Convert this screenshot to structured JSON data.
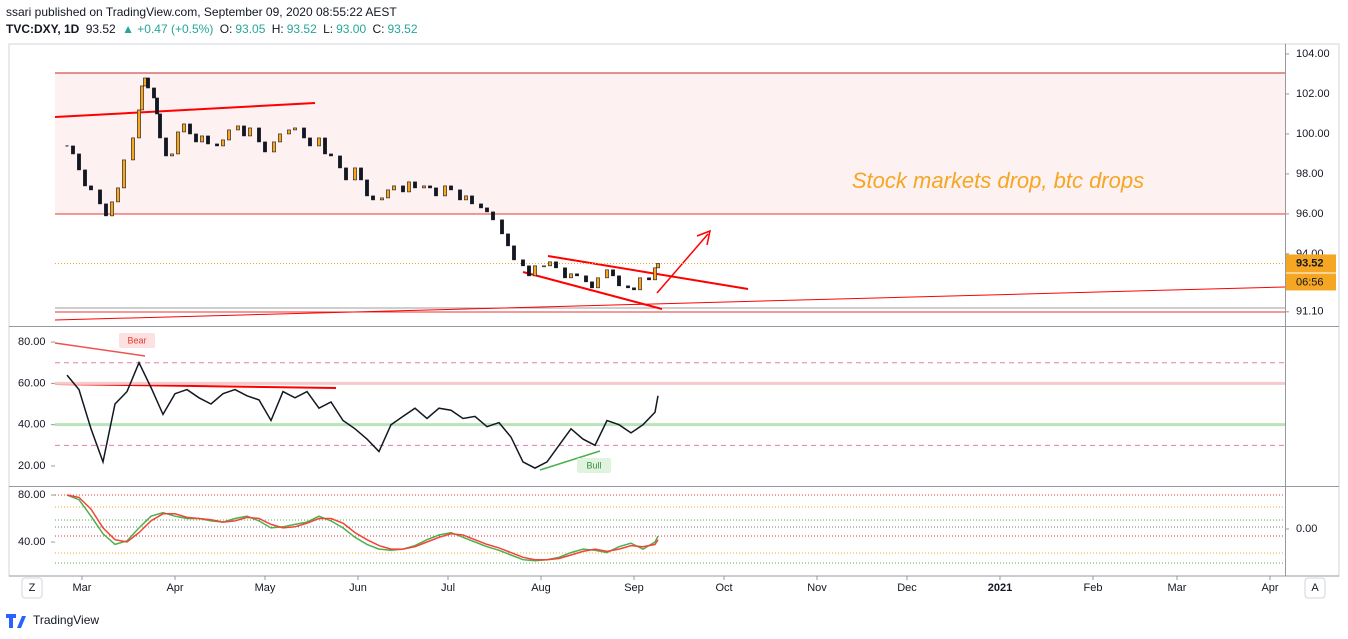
{
  "header": {
    "publisher": "ssari published on TradingView.com, September 09, 2020 08:55:22 AEST",
    "symbol": "TVC:DXY, 1D",
    "price": "93.52",
    "change": "▲ +0.47 (+0.5%)",
    "ohlc": [
      {
        "label": "O:",
        "value": "93.05"
      },
      {
        "label": "H:",
        "value": "93.52"
      },
      {
        "label": "L:",
        "value": "93.00"
      },
      {
        "label": "C:",
        "value": "93.52"
      }
    ]
  },
  "chart_data": [
    {
      "type": "candlestick",
      "x": [
        55,
        57,
        59,
        61,
        63,
        66,
        68,
        70,
        72,
        74,
        77,
        79,
        80,
        81,
        82,
        84,
        85,
        86,
        88,
        90,
        92,
        94,
        96,
        98,
        100,
        102,
        105,
        107,
        109,
        112,
        114,
        116,
        119,
        121,
        124,
        126,
        129,
        131,
        134,
        136,
        139,
        141,
        143,
        146,
        148,
        151,
        153,
        155,
        157,
        160,
        162,
        164,
        167,
        169,
        171,
        174,
        176,
        178,
        181,
        183,
        186,
        188,
        190,
        193,
        195,
        197,
        200,
        202,
        204,
        207,
        209,
        211,
        214,
        216,
        218,
        221,
        223,
        225,
        228,
        230,
        232,
        235,
        237,
        239,
        242,
        244,
        246,
        249,
        251,
        252
      ],
      "values": [
        99.4,
        99.0,
        98.2,
        97.4,
        97.2,
        96.5,
        95.9,
        96.6,
        97.3,
        98.7,
        99.8,
        101.2,
        102.4,
        102.8,
        102.3,
        101.8,
        101.0,
        99.8,
        98.9,
        99.0,
        100.1,
        100.5,
        100.0,
        99.6,
        99.9,
        99.5,
        99.4,
        99.7,
        100.2,
        100.4,
        99.9,
        100.3,
        99.6,
        99.1,
        99.6,
        100.0,
        100.2,
        100.3,
        99.8,
        99.4,
        99.8,
        99.0,
        98.9,
        98.3,
        97.7,
        98.3,
        97.7,
        96.9,
        96.7,
        96.8,
        97.2,
        97.4,
        97.1,
        97.6,
        97.3,
        97.4,
        97.3,
        96.9,
        97.4,
        97.2,
        96.7,
        96.9,
        96.5,
        96.3,
        96.1,
        95.7,
        95.0,
        94.4,
        93.7,
        93.4,
        92.9,
        93.4,
        93.4,
        93.6,
        93.3,
        92.8,
        93.0,
        92.9,
        92.6,
        92.3,
        92.8,
        93.2,
        92.9,
        92.4,
        92.3,
        92.2,
        92.8,
        92.7,
        93.3,
        93.52
      ],
      "up_color": "#f5a623",
      "down_color": "#131722",
      "xlim": [
        51,
        461
      ],
      "ylim": [
        90.44,
        104.45
      ],
      "yticks": [
        {
          "value": 104,
          "label": "104.00"
        },
        {
          "value": 102,
          "label": "102.00"
        },
        {
          "value": 100,
          "label": "100.00"
        },
        {
          "value": 98,
          "label": "98.00"
        },
        {
          "value": 96,
          "label": "96.00"
        },
        {
          "value": 94,
          "label": "94.00"
        },
        {
          "value": 91.1,
          "label": "91.10"
        }
      ],
      "price_label": "93.52",
      "countdown": "06:56",
      "annotations": [
        "Stock markets drop, btc drops"
      ]
    },
    {
      "type": "line",
      "x": [
        55,
        59,
        63,
        67,
        71,
        75,
        79,
        83,
        87,
        91,
        95,
        99,
        103,
        107,
        111,
        115,
        119,
        123,
        127,
        131,
        135,
        139,
        143,
        147,
        151,
        155,
        159,
        163,
        167,
        171,
        175,
        179,
        183,
        187,
        191,
        195,
        199,
        203,
        207,
        211,
        215,
        219,
        223,
        227,
        231,
        235,
        239,
        243,
        247,
        251,
        252
      ],
      "series": [
        {
          "color": "#131722",
          "values": [
            64,
            57,
            38,
            22,
            50,
            56,
            70,
            58,
            45,
            55,
            57,
            53,
            50,
            55,
            57,
            54,
            52,
            42,
            56,
            53,
            56,
            48,
            51,
            42,
            38,
            33,
            27,
            40,
            44,
            48,
            43,
            48,
            47,
            43,
            44,
            39,
            41,
            34,
            22,
            19,
            22,
            30,
            38,
            33,
            30,
            42,
            40,
            36,
            40,
            46,
            54
          ]
        }
      ],
      "xlim": [
        51,
        461
      ],
      "ylim": [
        10.8,
        86.8
      ],
      "yticks": [
        {
          "value": 80,
          "label": "80.00"
        },
        {
          "value": 60,
          "label": "60.00"
        },
        {
          "value": 40,
          "label": "40.00"
        },
        {
          "value": 20,
          "label": "20.00"
        }
      ],
      "levels": [
        70,
        60,
        40,
        30
      ],
      "annotations": [
        "Bear",
        "Bull"
      ]
    },
    {
      "type": "line",
      "x": [
        55,
        59,
        63,
        67,
        71,
        75,
        79,
        83,
        87,
        91,
        95,
        99,
        103,
        107,
        111,
        115,
        119,
        123,
        127,
        131,
        135,
        139,
        143,
        147,
        151,
        155,
        159,
        163,
        167,
        171,
        175,
        179,
        183,
        187,
        191,
        195,
        199,
        203,
        207,
        211,
        215,
        219,
        223,
        227,
        231,
        235,
        239,
        243,
        247,
        251,
        252
      ],
      "series": [
        {
          "color": "#4caf50",
          "values": [
            80,
            76,
            62,
            47,
            38,
            41,
            52,
            62,
            65,
            62,
            60,
            60,
            58,
            57,
            60,
            62,
            58,
            52,
            53,
            55,
            57,
            62,
            58,
            52,
            44,
            38,
            34,
            33,
            34,
            37,
            42,
            46,
            48,
            44,
            40,
            36,
            33,
            29,
            25,
            24,
            25,
            27,
            31,
            34,
            33,
            31,
            36,
            39,
            34,
            40,
            45
          ]
        },
        {
          "color": "#f44336",
          "values": [
            80,
            78,
            68,
            52,
            42,
            40,
            48,
            58,
            64,
            64,
            61,
            60,
            59,
            57,
            58,
            61,
            60,
            55,
            52,
            53,
            56,
            60,
            60,
            56,
            48,
            42,
            37,
            34,
            34,
            36,
            40,
            44,
            47,
            46,
            42,
            38,
            35,
            31,
            27,
            25,
            25,
            26,
            29,
            32,
            34,
            32,
            34,
            37,
            36,
            38,
            42
          ]
        }
      ],
      "xlim": [
        51,
        461
      ],
      "ylim": [
        16.2,
        86
      ],
      "yticks": [
        {
          "value": 80,
          "label": "80.00"
        },
        {
          "value": 40,
          "label": "40.00"
        }
      ],
      "y2lim": [
        -1,
        1
      ],
      "y2ticks": [
        {
          "value": 0,
          "label": "0.00"
        }
      ],
      "xticks": [
        {
          "value": 60,
          "label": "Mar"
        },
        {
          "value": 91,
          "label": "Apr"
        },
        {
          "value": 121,
          "label": "May"
        },
        {
          "value": 152,
          "label": "Jun"
        },
        {
          "value": 182,
          "label": "Jul"
        },
        {
          "value": 213,
          "label": "Aug"
        },
        {
          "value": 244,
          "label": "Sep"
        },
        {
          "value": 274,
          "label": "Oct"
        },
        {
          "value": 305,
          "label": "Nov"
        },
        {
          "value": 335,
          "label": "Dec"
        },
        {
          "value": 366,
          "label": "2021"
        },
        {
          "value": 397,
          "label": "Feb"
        },
        {
          "value": 425,
          "label": "Mar"
        },
        {
          "value": 456,
          "label": "Apr"
        }
      ]
    }
  ],
  "footer": {
    "brand": "TradingView",
    "buttons": [
      "Z",
      "A"
    ]
  }
}
